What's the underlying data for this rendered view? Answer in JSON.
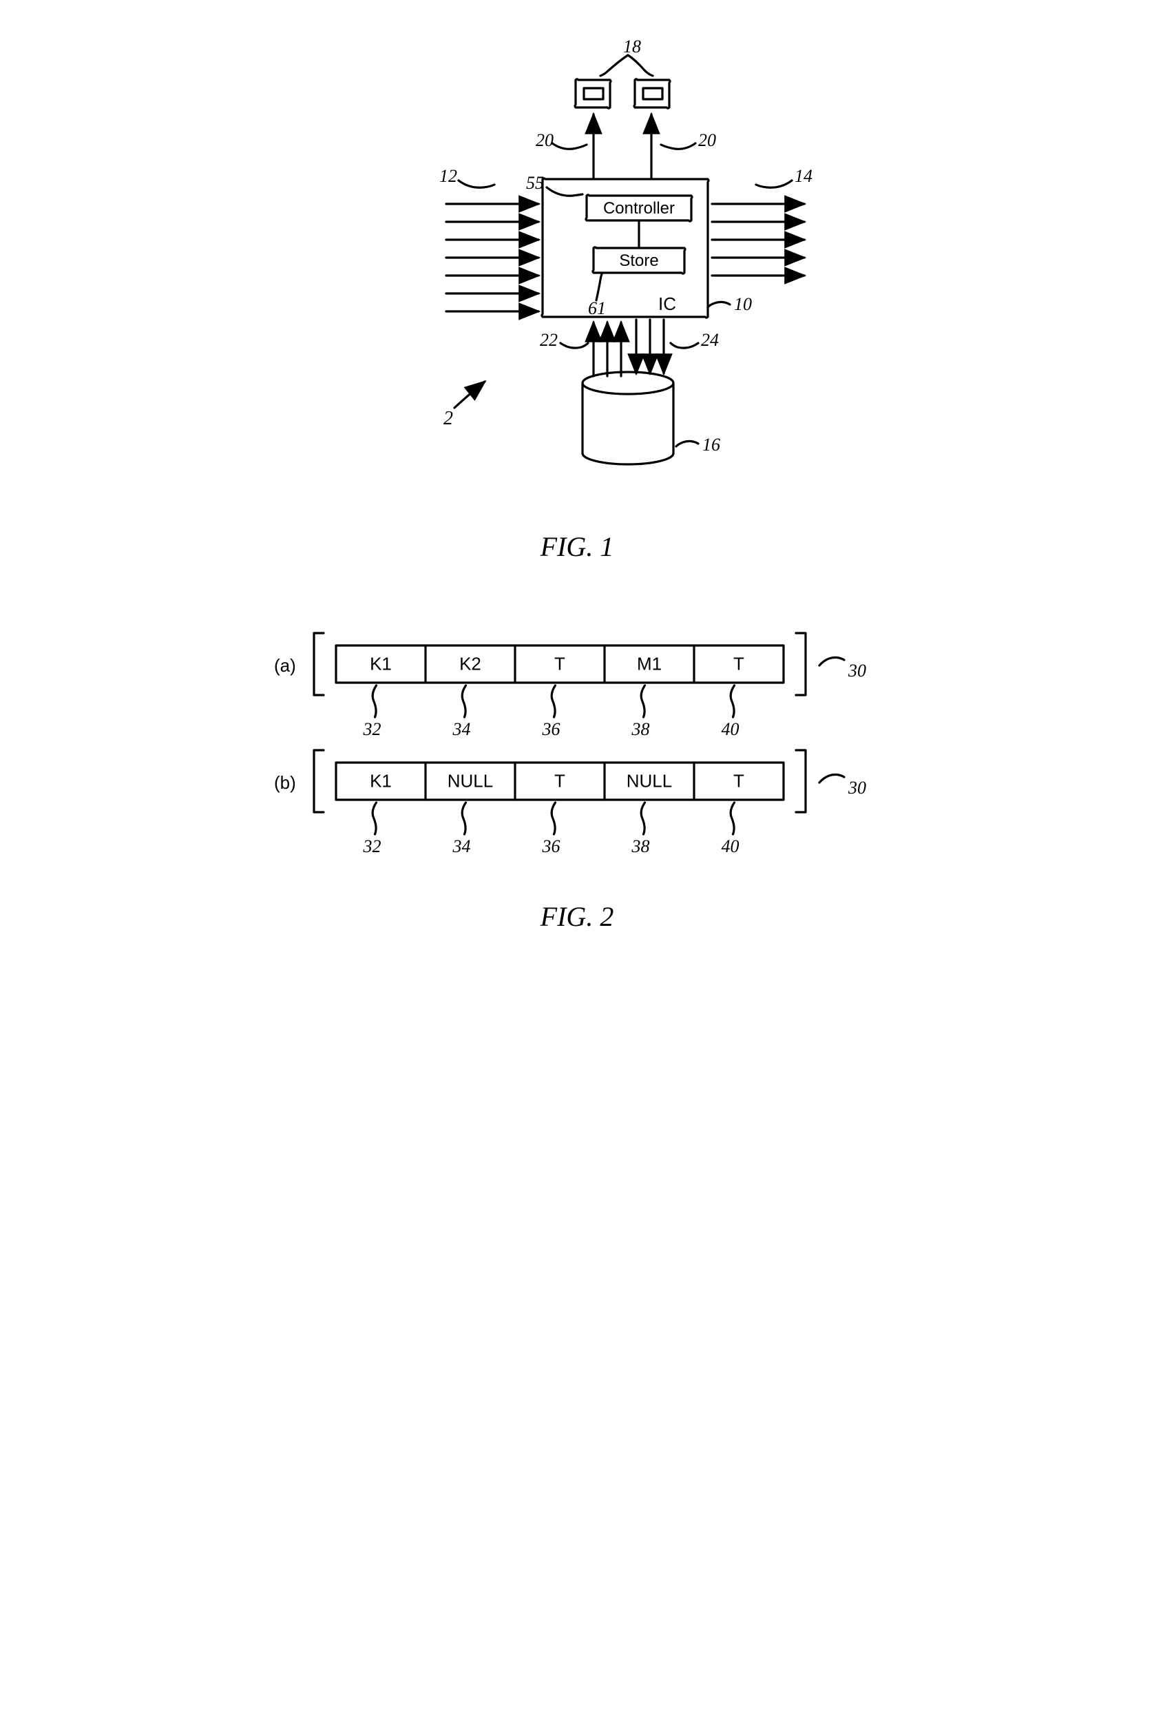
{
  "figure1": {
    "caption": "FIG. 1",
    "ic_box": {
      "label": "IC",
      "ref": "10"
    },
    "controller": {
      "label": "Controller",
      "ref": "55"
    },
    "store": {
      "label": "Store",
      "ref": "61"
    },
    "outputs_top": {
      "ref": "18"
    },
    "output_arrow_left_ref": "20",
    "output_arrow_right_ref": "20",
    "inputs_left_ref": "12",
    "outputs_right_ref": "14",
    "sys_ref": "2",
    "db_ref": "16",
    "up_arrows_ref": "22",
    "down_arrows_ref": "24",
    "stroke_width": 3.2,
    "stroke": "#000000",
    "font_family_italic": "Times New Roman",
    "label_fontsize": 26,
    "box_label_fontsize": 26
  },
  "figure2": {
    "caption": "FIG. 2",
    "rows": [
      {
        "prefix": "(a)",
        "ref": "30",
        "cells": [
          {
            "value": "K1",
            "ref": "32"
          },
          {
            "value": "K2",
            "ref": "34"
          },
          {
            "value": "T",
            "ref": "36"
          },
          {
            "value": "M1",
            "ref": "38"
          },
          {
            "value": "T",
            "ref": "40"
          }
        ]
      },
      {
        "prefix": "(b)",
        "ref": "30",
        "cells": [
          {
            "value": "K1",
            "ref": "32"
          },
          {
            "value": "NULL",
            "ref": "34"
          },
          {
            "value": "T",
            "ref": "36"
          },
          {
            "value": "NULL",
            "ref": "38"
          },
          {
            "value": "T",
            "ref": "40"
          }
        ]
      }
    ],
    "stroke_width": 3.2,
    "stroke": "#000000",
    "cell_font": "Arial, sans-serif",
    "cell_fontsize": 26,
    "ref_font": "Times New Roman",
    "ref_fontsize": 26
  }
}
